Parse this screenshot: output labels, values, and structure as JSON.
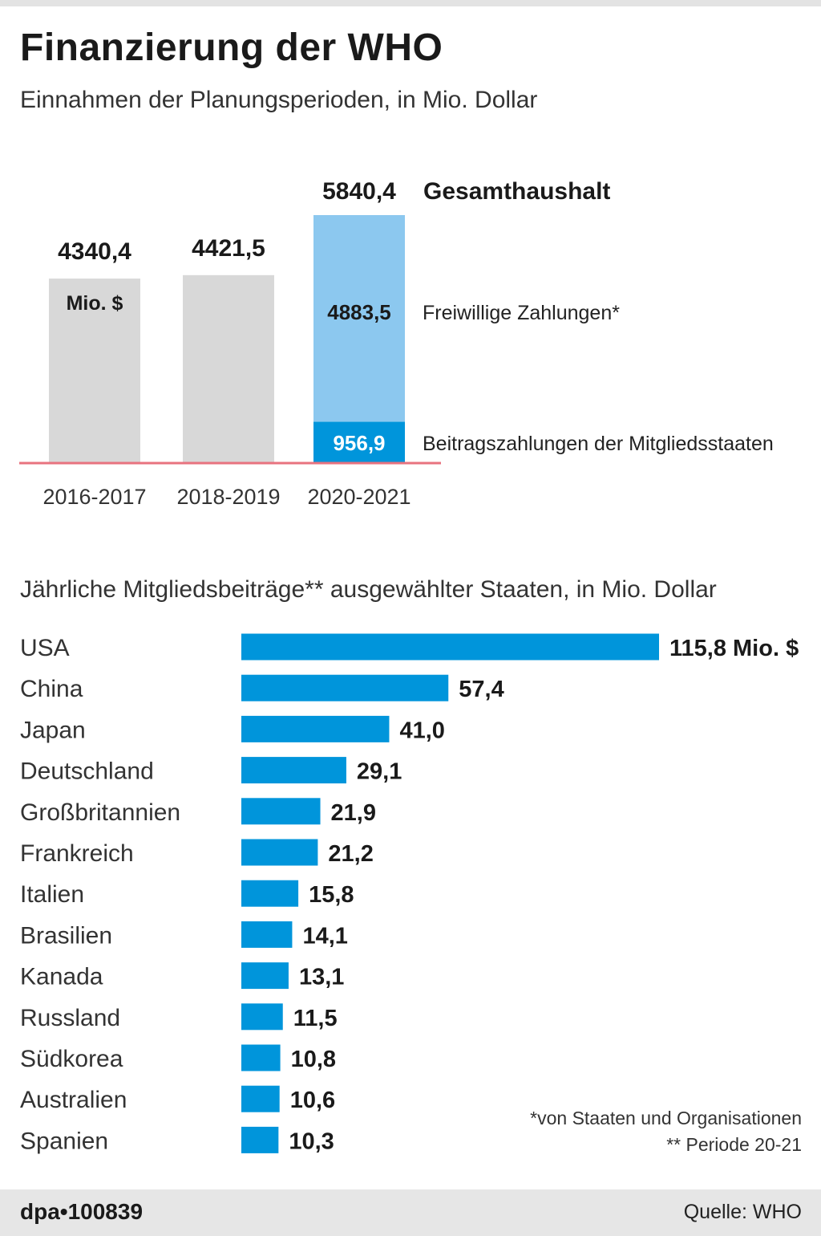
{
  "header": {
    "title": "Finanzierung der WHO",
    "subtitle": "Einnahmen der Planungsperioden, in Mio. Dollar"
  },
  "chart_data": [
    {
      "type": "bar",
      "categories": [
        "2016-2017",
        "2018-2019",
        "2020-2021"
      ],
      "values": [
        4340.4,
        4421.5,
        5840.4
      ],
      "value_labels": [
        "4340,4",
        "4421,5",
        "5840,4"
      ],
      "unit_label": "Mio. $",
      "total_label": "Gesamthaushalt",
      "stacked_last": {
        "segments": [
          {
            "name": "Beitragszahlungen der Mitgliedsstaaten",
            "value": 956.9,
            "label": "956,9",
            "color": "#0095db"
          },
          {
            "name": "Freiwillige Zahlungen*",
            "value": 4883.5,
            "label": "4883,5",
            "color": "#8cc8ef"
          }
        ]
      },
      "colors": {
        "past": "#d8d8d8",
        "baseline": "#e8737f"
      },
      "ylim": [
        0,
        6000
      ]
    },
    {
      "type": "bar",
      "orientation": "horizontal",
      "title": "Jährliche Mitgliedsbeiträge** ausgewählter Staaten, in Mio. Dollar",
      "categories": [
        "USA",
        "China",
        "Japan",
        "Deutschland",
        "Großbritannien",
        "Frankreich",
        "Italien",
        "Brasilien",
        "Kanada",
        "Russland",
        "Südkorea",
        "Australien",
        "Spanien"
      ],
      "values": [
        115.8,
        57.4,
        41.0,
        29.1,
        21.9,
        21.2,
        15.8,
        14.1,
        13.1,
        11.5,
        10.8,
        10.6,
        10.3
      ],
      "value_labels": [
        "115,8 Mio. $",
        "57,4",
        "41,0",
        "29,1",
        "21,9",
        "21,2",
        "15,8",
        "14,1",
        "13,1",
        "11,5",
        "10,8",
        "10,6",
        "10,3"
      ],
      "color": "#0095db"
    }
  ],
  "footnotes": [
    "*von Staaten und Organisationen",
    "** Periode 20-21"
  ],
  "footer": {
    "agency": "dpa•100839",
    "source": "Quelle: WHO"
  }
}
